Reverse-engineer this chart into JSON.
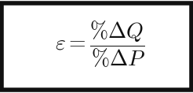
{
  "formula": "$\\varepsilon = \\dfrac{\\%\\Delta Q}{\\%\\Delta P}$",
  "background_color": "#ffffff",
  "border_color": "#111111",
  "text_color": "#111111",
  "fontsize": 20,
  "figsize": [
    2.46,
    1.18
  ],
  "dpi": 100,
  "border_linewidth": 4
}
